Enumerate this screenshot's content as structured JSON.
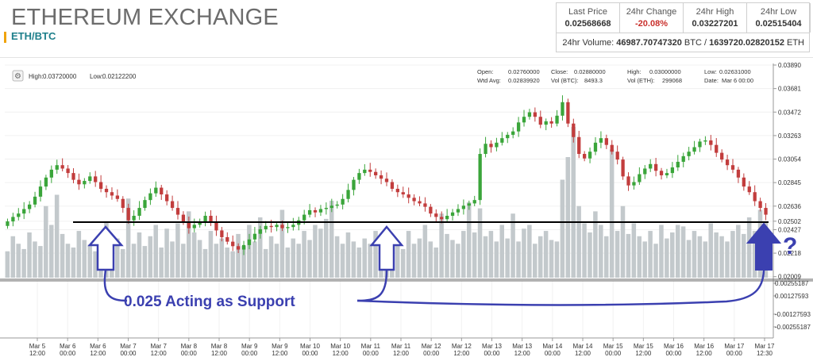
{
  "header": {
    "title": "ETHEREUM EXCHANGE",
    "pair": "ETH/BTC"
  },
  "stats": {
    "last_price_label": "Last Price",
    "last_price": "0.02568668",
    "change_label": "24hr Change",
    "change": "-20.08%",
    "high_label": "24hr High",
    "high": "0.03227201",
    "low_label": "24hr Low",
    "low": "0.02515404",
    "volume_label": "24hr Volume:",
    "volume_btc": "46987.70747320",
    "volume_btc_unit": "BTC /",
    "volume_eth": "1639720.02820152",
    "volume_eth_unit": "ETH",
    "neg_color": "#c9302c"
  },
  "chart_data": {
    "type": "candlestick",
    "range_info": {
      "high_label": "High:",
      "high": "0.03720000",
      "low_label": "Low:",
      "low": "0.02122200"
    },
    "ohlc_info": {
      "open_label": "Open:",
      "open": "0.02760000",
      "close_label": "Close:",
      "close": "0.02880000",
      "high_label": "High:",
      "high": "0.03000000",
      "low_label": "Low:",
      "low": "0.02631000",
      "wtd_label": "Wtd Avg:",
      "wtd": "0.02839920",
      "volbtc_label": "Vol (BTC):",
      "volbtc": "8493.3",
      "voleth_label": "Vol (ETH):",
      "voleth": "299068",
      "date_label": "Date:",
      "date": "Mar 6 00:00"
    },
    "price_axis": [
      "0.03890",
      "0.03681",
      "0.03472",
      "0.03263",
      "0.03054",
      "0.02845",
      "0.02636",
      "0.02502",
      "0.02427",
      "0.02218",
      "0.02009"
    ],
    "macd_axis": [
      "0.00255187",
      "0.00127593",
      "-0.00127593",
      "-0.00255187"
    ],
    "x_labels": [
      [
        "Mar 5",
        "12:00"
      ],
      [
        "Mar 6",
        "00:00"
      ],
      [
        "Mar 6",
        "12:00"
      ],
      [
        "Mar 7",
        "00:00"
      ],
      [
        "Mar 7",
        "12:00"
      ],
      [
        "Mar 8",
        "00:00"
      ],
      [
        "Mar 8",
        "12:00"
      ],
      [
        "Mar 9",
        "00:00"
      ],
      [
        "Mar 9",
        "12:00"
      ],
      [
        "Mar 10",
        "00:00"
      ],
      [
        "Mar 10",
        "12:00"
      ],
      [
        "Mar 11",
        "00:00"
      ],
      [
        "Mar 11",
        "12:00"
      ],
      [
        "Mar 12",
        "00:00"
      ],
      [
        "Mar 12",
        "12:00"
      ],
      [
        "Mar 13",
        "00:00"
      ],
      [
        "Mar 13",
        "12:00"
      ],
      [
        "Mar 14",
        "00:00"
      ],
      [
        "Mar 14",
        "12:00"
      ],
      [
        "Mar 15",
        "00:00"
      ],
      [
        "Mar 15",
        "12:00"
      ],
      [
        "Mar 16",
        "00:00"
      ],
      [
        "Mar 16",
        "12:00"
      ],
      [
        "Mar 17",
        "00:00"
      ],
      [
        "Mar 17",
        "12:30"
      ]
    ],
    "closes": [
      0.025,
      0.0254,
      0.0257,
      0.0261,
      0.0265,
      0.0272,
      0.0281,
      0.0289,
      0.0296,
      0.03,
      0.0297,
      0.0293,
      0.0287,
      0.0283,
      0.0286,
      0.029,
      0.0285,
      0.0279,
      0.0276,
      0.0273,
      0.027,
      0.0262,
      0.0251,
      0.0255,
      0.0262,
      0.0269,
      0.0275,
      0.028,
      0.0274,
      0.0268,
      0.0262,
      0.0256,
      0.025,
      0.0244,
      0.0247,
      0.025,
      0.0255,
      0.0249,
      0.0242,
      0.0236,
      0.0232,
      0.0228,
      0.0225,
      0.0229,
      0.0234,
      0.0239,
      0.0243,
      0.0246,
      0.0245,
      0.0247,
      0.0244,
      0.0245,
      0.0247,
      0.0251,
      0.0256,
      0.026,
      0.0258,
      0.0261,
      0.0262,
      0.0264,
      0.0265,
      0.027,
      0.0278,
      0.0287,
      0.0293,
      0.0296,
      0.0294,
      0.0291,
      0.0288,
      0.0285,
      0.0279,
      0.0276,
      0.0274,
      0.0271,
      0.0268,
      0.0266,
      0.0263,
      0.0257,
      0.0254,
      0.0252,
      0.0255,
      0.0258,
      0.0261,
      0.0264,
      0.0266,
      0.0269,
      0.031,
      0.0319,
      0.0316,
      0.032,
      0.0324,
      0.0327,
      0.033,
      0.0338,
      0.0343,
      0.0347,
      0.0343,
      0.0336,
      0.0339,
      0.0337,
      0.0344,
      0.0356,
      0.0337,
      0.0325,
      0.031,
      0.0306,
      0.0312,
      0.032,
      0.0324,
      0.0318,
      0.0312,
      0.0305,
      0.029,
      0.0282,
      0.0285,
      0.0292,
      0.0297,
      0.0301,
      0.0295,
      0.0291,
      0.0293,
      0.0298,
      0.0303,
      0.0308,
      0.0312,
      0.0316,
      0.0321,
      0.0322,
      0.0318,
      0.0311,
      0.0305,
      0.03,
      0.0296,
      0.0289,
      0.0281,
      0.0276,
      0.0268,
      0.0262,
      0.0256
    ],
    "volumes": [
      35,
      55,
      45,
      38,
      60,
      48,
      42,
      95,
      70,
      110,
      58,
      45,
      40,
      62,
      50,
      44,
      35,
      48,
      75,
      40,
      52,
      38,
      105,
      45,
      60,
      42,
      55,
      70,
      40,
      65,
      48,
      72,
      45,
      88,
      60,
      50,
      38,
      62,
      45,
      52,
      40,
      35,
      58,
      42,
      70,
      48,
      80,
      38,
      55,
      45,
      90,
      40,
      52,
      45,
      62,
      50,
      70,
      65,
      78,
      102,
      55,
      45,
      60,
      48,
      40,
      52,
      45,
      62,
      40,
      50,
      55,
      48,
      38,
      62,
      45,
      52,
      70,
      48,
      40,
      85,
      58,
      50,
      45,
      62,
      100,
      60,
      92,
      55,
      62,
      48,
      70,
      52,
      85,
      48,
      65,
      70,
      45,
      55,
      62,
      50,
      48,
      130,
      160,
      200,
      95,
      72,
      60,
      88,
      70,
      55,
      170,
      62,
      95,
      58,
      72,
      55,
      48,
      62,
      45,
      70,
      52,
      60,
      70,
      68,
      50,
      62,
      55,
      48,
      72,
      60,
      55,
      48,
      62,
      70,
      58,
      80,
      62,
      90,
      74
    ],
    "support_level": "0.02502",
    "annotation": "0.025 Acting as Support",
    "question_mark": "?",
    "candle_up": "#3aa53a",
    "candle_down": "#c23d3d",
    "annotation_color": "#3b40b0"
  }
}
